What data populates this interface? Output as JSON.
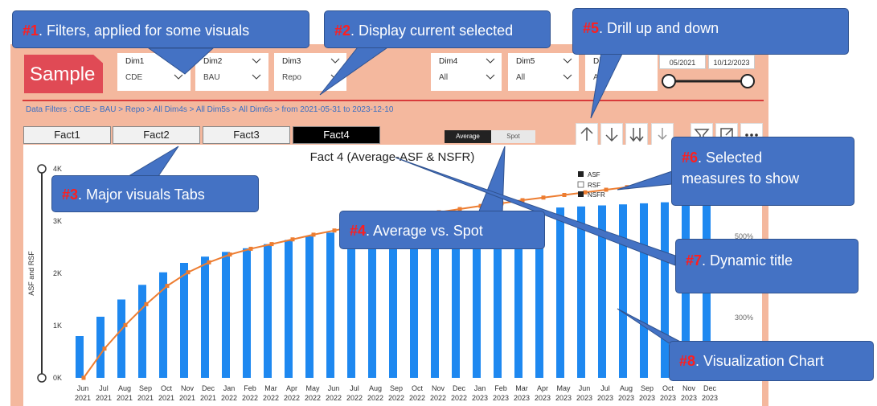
{
  "brand": {
    "logo_text": "Sample",
    "logo_color": "#e04a55"
  },
  "slicers": [
    {
      "label": "Dim1",
      "value": "CDE"
    },
    {
      "label": "Dim2",
      "value": "BAU"
    },
    {
      "label": "Dim3",
      "value": "Repo"
    },
    {
      "label": "Dim4",
      "value": "All"
    },
    {
      "label": "Dim5",
      "value": "All"
    },
    {
      "label": "Dim6",
      "value": "All"
    }
  ],
  "date_range": {
    "start": "05/2021",
    "end": "10/12/2023"
  },
  "breadcrumb": "Data Filters : CDE > BAU > Repo > All Dim4s > All Dim5s > All Dim6s > from 2021-05-31 to 2023-12-10",
  "tabs": [
    {
      "label": "Fact1",
      "active": false
    },
    {
      "label": "Fact2",
      "active": false
    },
    {
      "label": "Fact3",
      "active": false
    },
    {
      "label": "Fact4",
      "active": true
    }
  ],
  "measure_toggle": {
    "average": "Average",
    "spot": "Spot",
    "selected": "average"
  },
  "legend": [
    {
      "label": "ASF",
      "checked": true
    },
    {
      "label": "RSF",
      "checked": false
    },
    {
      "label": "NSFR",
      "checked": true
    }
  ],
  "icons": [
    "drill-up-icon",
    "drill-down-icon",
    "expand-next-level-icon",
    "drill-hierarchy-icon",
    "filter-icon",
    "focus-mode-icon",
    "more-options-icon"
  ],
  "chart_data": {
    "type": "bar",
    "title": "Fact 4 (Average-ASF & NSFR)",
    "ylabel": "ASF and RSF",
    "ylim": [
      0,
      4000
    ],
    "yticks": [
      "0K",
      "1K",
      "2K",
      "3K",
      "4K"
    ],
    "y2ticks": [
      "300%",
      "500%"
    ],
    "categories": [
      "Jun 2021",
      "Jul 2021",
      "Aug 2021",
      "Sep 2021",
      "Oct 2021",
      "Nov 2021",
      "Dec 2021",
      "Jan 2022",
      "Feb 2022",
      "Mar 2022",
      "Apr 2022",
      "May 2022",
      "Jun 2022",
      "Jul 2022",
      "Aug 2022",
      "Sep 2022",
      "Oct 2022",
      "Nov 2022",
      "Dec 2022",
      "Jan 2023",
      "Feb 2023",
      "Mar 2023",
      "Apr 2023",
      "May 2023",
      "Jun 2023",
      "Jul 2023",
      "Aug 2023",
      "Sep 2023",
      "Oct 2023",
      "Nov 2023",
      "Dec 2023"
    ],
    "month_labels": [
      "Jun",
      "Jul",
      "Aug",
      "Sep",
      "Oct",
      "Nov",
      "Dec",
      "Jan",
      "Feb",
      "Mar",
      "Apr",
      "May",
      "Jun",
      "Jul",
      "Aug",
      "Sep",
      "Oct",
      "Nov",
      "Dec",
      "Jan",
      "Feb",
      "Mar",
      "Apr",
      "May",
      "Jun",
      "Jul",
      "Aug",
      "Sep",
      "Oct",
      "Nov",
      "Dec"
    ],
    "year_labels": [
      "2021",
      "2021",
      "2021",
      "2021",
      "2021",
      "2021",
      "2021",
      "2022",
      "2022",
      "2022",
      "2022",
      "2022",
      "2022",
      "2022",
      "2022",
      "2022",
      "2022",
      "2022",
      "2022",
      "2023",
      "2023",
      "2023",
      "2023",
      "2023",
      "2023",
      "2023",
      "2023",
      "2023",
      "2023",
      "2023",
      "2023"
    ],
    "series": [
      {
        "name": "ASF",
        "type": "bar",
        "color": "#1e88f0",
        "values": [
          800,
          1170,
          1500,
          1780,
          2020,
          2200,
          2320,
          2410,
          2480,
          2560,
          2640,
          2710,
          2780,
          2840,
          2900,
          2950,
          3000,
          3040,
          3080,
          3120,
          3160,
          3200,
          3230,
          3260,
          3280,
          3300,
          3320,
          3340,
          3360,
          3370,
          3380
        ]
      },
      {
        "name": "NSFR",
        "type": "line",
        "color": "#ed7d31",
        "axis": "y2",
        "values": [
          0,
          560,
          1010,
          1410,
          1760,
          2020,
          2210,
          2360,
          2470,
          2560,
          2650,
          2740,
          2820,
          2900,
          2970,
          3040,
          3110,
          3170,
          3230,
          3290,
          3340,
          3400,
          3450,
          3500,
          3550,
          3600,
          3650,
          3700,
          3750,
          3800,
          3850
        ]
      }
    ]
  },
  "callouts": [
    {
      "num": "#1",
      "text": ". Filters, applied for some visuals"
    },
    {
      "num": "#2",
      "text": ". Display current selected"
    },
    {
      "num": "#3",
      "text": ". Major visuals Tabs"
    },
    {
      "num": "#4",
      "text": ". Average vs. Spot"
    },
    {
      "num": "#5",
      "text": ". Drill up and down"
    },
    {
      "num": "#6",
      "text": ". Selected"
    },
    {
      "num": "",
      "text": "measures to show"
    },
    {
      "num": "#7",
      "text": ". Dynamic title"
    },
    {
      "num": "#8",
      "text": ". Visualization Chart"
    }
  ]
}
